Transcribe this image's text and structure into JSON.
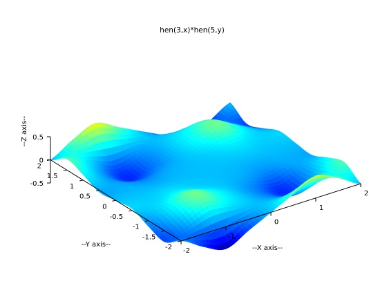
{
  "window": {
    "background": "#ffffff"
  },
  "chart_data": {
    "type": "surface",
    "title": "hen(3,x)*hen(5,y)",
    "xlabel": "--X axis--",
    "ylabel": "--Y axis--",
    "zlabel": "--Z axis--",
    "xlim": [
      -2,
      2
    ],
    "ylim": [
      -2,
      2
    ],
    "zlim": [
      -0.5,
      0.5
    ],
    "x_ticks": [
      "-2",
      "-1",
      "0",
      "1",
      "2"
    ],
    "y_ticks": [
      "-2",
      "-1.5",
      "-1",
      "-0.5",
      "0",
      "0.5",
      "1",
      "1.5",
      "2"
    ],
    "z_ticks": [
      "-0.5",
      "0",
      "0.5"
    ],
    "colormap": "jet",
    "grid": false,
    "box": false,
    "x_samples": [
      -2,
      -1.5,
      -1,
      -0.5,
      0,
      0.5,
      1,
      1.5,
      2
    ],
    "y_samples": [
      -2,
      -1.5,
      -1,
      -0.5,
      0,
      0.5,
      1,
      1.5,
      2
    ],
    "z_values": [
      [
        0.0,
        -0.24,
        -0.12,
        0.04,
        0.0,
        -0.04,
        0.12,
        0.24,
        0.0
      ],
      [
        -0.28,
        -0.06,
        0.08,
        0.04,
        0.0,
        -0.04,
        -0.08,
        0.06,
        0.28
      ],
      [
        -0.48,
        0.12,
        0.3,
        0.1,
        0.0,
        -0.1,
        -0.3,
        -0.12,
        0.48
      ],
      [
        -0.24,
        0.06,
        0.14,
        0.04,
        0.0,
        -0.04,
        -0.14,
        -0.06,
        0.24
      ],
      [
        0.0,
        0.0,
        0.0,
        0.0,
        0.0,
        0.0,
        0.0,
        0.0,
        0.0
      ],
      [
        0.24,
        -0.06,
        -0.14,
        -0.04,
        0.0,
        0.04,
        0.14,
        0.06,
        -0.24
      ],
      [
        0.48,
        -0.12,
        -0.3,
        -0.1,
        0.0,
        0.1,
        0.3,
        0.12,
        -0.48
      ],
      [
        0.28,
        0.06,
        -0.08,
        -0.04,
        0.0,
        0.04,
        0.08,
        -0.06,
        -0.28
      ],
      [
        0.0,
        0.24,
        0.12,
        -0.04,
        0.0,
        0.04,
        -0.12,
        -0.24,
        0.0
      ]
    ]
  }
}
